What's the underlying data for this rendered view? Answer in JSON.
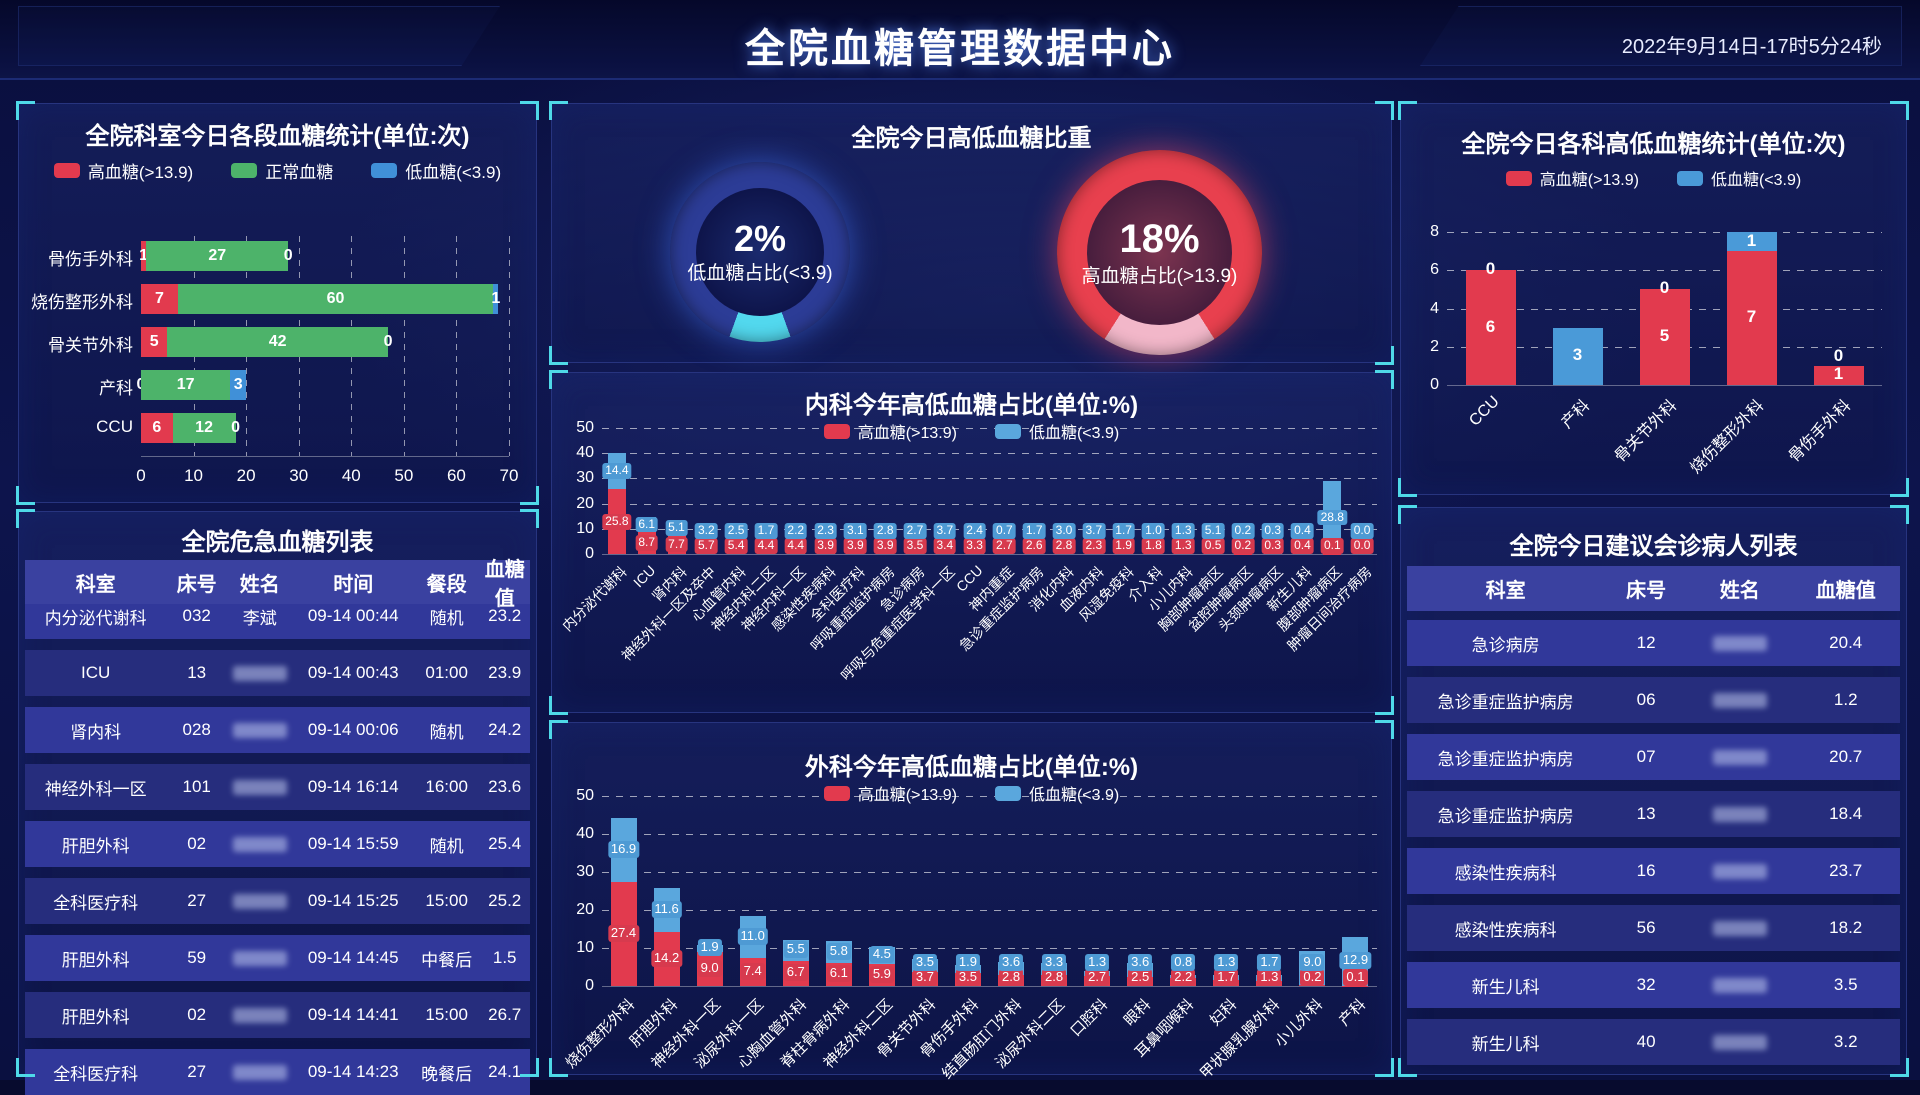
{
  "header": {
    "title": "全院血糖管理数据中心",
    "datetime": "2022年9月14日-17时5分24秒"
  },
  "colors": {
    "high": "#e23a4e",
    "normal": "#4db36a",
    "low": "#4090d8",
    "low_light": "#5aa7dd",
    "cyan_bracket": "#4fd9e8",
    "table_header_bg": "#3a41a0",
    "row_even": "#31389a",
    "row_odd": "#262d7d"
  },
  "chart_data": [
    {
      "type": "bar",
      "orientation": "horizontal",
      "stacked": true,
      "title": "全院科室今日各段血糖统计(单位:次)",
      "categories": [
        "骨伤手外科",
        "烧伤整形外科",
        "骨关节外科",
        "产科",
        "CCU"
      ],
      "series": [
        {
          "name": "高血糖(>13.9)",
          "color": "#e23a4e",
          "values": [
            1,
            7,
            5,
            0,
            6
          ]
        },
        {
          "name": "正常血糖",
          "color": "#4db36a",
          "values": [
            27,
            60,
            42,
            17,
            12
          ]
        },
        {
          "name": "低血糖(<3.9)",
          "color": "#4090d8",
          "values": [
            0,
            1,
            0,
            3,
            0
          ]
        }
      ],
      "xlim": [
        0,
        70
      ],
      "xticks": [
        0,
        10,
        20,
        30,
        40,
        50,
        60,
        70
      ],
      "grid": true
    },
    {
      "type": "pie",
      "title": "全院今日高低血糖比重",
      "donuts": [
        {
          "percent": "2%",
          "value": 2,
          "label": "低血糖占比(<3.9)",
          "ring_color": "#2c3c96",
          "arc_color": "#52d8ee",
          "glow": "rgba(70,120,255,0.55)"
        },
        {
          "percent": "18%",
          "value": 18,
          "label": "高血糖占比(>13.9)",
          "ring_color": "#e8404e",
          "arc_color": "#f2b7c9",
          "glow": "rgba(235,70,100,0.6)"
        }
      ]
    },
    {
      "type": "bar",
      "stacked": true,
      "title": "内科今年高低血糖占比(单位:%)",
      "categories": [
        "内分泌代谢科",
        "ICU",
        "肾内科",
        "神经外科一区及卒中",
        "心血管内科",
        "神经内科二区",
        "神经内科一区",
        "感染性疾病科",
        "全科医疗科",
        "呼吸重症监护病房",
        "急诊病房",
        "呼吸与危重症医学科一区",
        "CCU",
        "神内重症",
        "急诊重症监护病房",
        "消化内科",
        "血液内科",
        "风湿免疫科",
        "介入科",
        "小儿内科",
        "胸部肿瘤病区",
        "盆腔肿瘤病区",
        "头颈肿瘤病区",
        "新生儿科",
        "腹部肿瘤病区",
        "肿瘤日间治疗病房"
      ],
      "series": [
        {
          "name": "高血糖(>13.9)",
          "color": "#e23a4e",
          "values": [
            25.8,
            8.7,
            7.7,
            5.7,
            5.4,
            4.4,
            4.4,
            3.9,
            3.9,
            3.9,
            3.5,
            3.4,
            3.3,
            2.7,
            2.6,
            2.8,
            2.3,
            1.9,
            1.8,
            1.3,
            0.5,
            0.2,
            0.3,
            0.4,
            0.1,
            0.0
          ]
        },
        {
          "name": "低血糖(<3.9)",
          "color": "#5aa7dd",
          "values": [
            14.4,
            6.1,
            5.1,
            3.2,
            2.5,
            1.7,
            2.2,
            2.3,
            3.1,
            2.8,
            2.7,
            3.7,
            2.4,
            0.7,
            1.7,
            3.0,
            3.7,
            1.7,
            1.0,
            1.3,
            5.1,
            0.2,
            0.3,
            0.4,
            28.8,
            0.0
          ]
        }
      ],
      "ylim": [
        0,
        50
      ],
      "yticks": [
        0,
        10,
        20,
        30,
        40,
        50
      ],
      "grid": true
    },
    {
      "type": "bar",
      "stacked": true,
      "title": "外科今年高低血糖占比(单位:%)",
      "categories": [
        "烧伤整形外科",
        "肝胆外科",
        "神经外科一区",
        "泌尿外科一区",
        "心胸血管外科",
        "脊柱骨病外科",
        "神经外科二区",
        "骨关节外科",
        "骨伤手外科",
        "结直肠肛门外科",
        "泌尿外科二区",
        "口腔科",
        "眼科",
        "耳鼻咽喉科",
        "妇科",
        "甲状腺乳腺外科",
        "小儿外科",
        "产科"
      ],
      "series": [
        {
          "name": "高血糖(>13.9)",
          "color": "#e23a4e",
          "values": [
            27.4,
            14.2,
            9.0,
            7.4,
            6.7,
            6.1,
            5.9,
            3.7,
            3.5,
            2.8,
            2.8,
            2.7,
            2.5,
            2.2,
            1.7,
            1.3,
            0.2,
            0.1
          ]
        },
        {
          "name": "低血糖(<3.9)",
          "color": "#5aa7dd",
          "values": [
            16.9,
            11.6,
            1.9,
            11.0,
            5.5,
            5.8,
            4.5,
            3.5,
            1.9,
            3.6,
            3.3,
            1.3,
            3.6,
            0.8,
            1.3,
            1.7,
            9.0,
            12.9
          ]
        }
      ],
      "ylim": [
        0,
        50
      ],
      "yticks": [
        0,
        10,
        20,
        30,
        40,
        50
      ],
      "grid": true
    },
    {
      "type": "bar",
      "stacked": true,
      "title": "全院今日各科高低血糖统计(单位:次)",
      "categories": [
        "CCU",
        "产科",
        "骨关节外科",
        "烧伤整形外科",
        "骨伤手外科"
      ],
      "series": [
        {
          "name": "高血糖(>13.9)",
          "color": "#e23a4e",
          "values": [
            6,
            0,
            5,
            7,
            1
          ]
        },
        {
          "name": "低血糖(<3.9)",
          "color": "#4a9ad8",
          "values": [
            0,
            3,
            0,
            1,
            0
          ]
        }
      ],
      "ylim": [
        0,
        8
      ],
      "yticks": [
        0,
        2,
        4,
        6,
        8
      ],
      "grid": true
    }
  ],
  "tables": {
    "critical": {
      "title": "全院危急血糖列表",
      "columns": [
        "科室",
        "床号",
        "姓名",
        "时间",
        "餐段",
        "血糖值"
      ],
      "name_col": 2,
      "names_blurred": true,
      "rows": [
        [
          "内分泌代谢科",
          "032",
          "李斌",
          "09-14 00:44",
          "随机",
          "23.2"
        ],
        [
          "ICU",
          "13",
          "",
          "09-14 00:43",
          "01:00",
          "23.9"
        ],
        [
          "肾内科",
          "028",
          "",
          "09-14 00:06",
          "随机",
          "24.2"
        ],
        [
          "神经外科一区",
          "101",
          "",
          "09-14 16:14",
          "16:00",
          "23.6"
        ],
        [
          "肝胆外科",
          "02",
          "",
          "09-14 15:59",
          "随机",
          "25.4"
        ],
        [
          "全科医疗科",
          "27",
          "",
          "09-14 15:25",
          "15:00",
          "25.2"
        ],
        [
          "肝胆外科",
          "59",
          "",
          "09-14 14:45",
          "中餐后",
          "1.5"
        ],
        [
          "肝胆外科",
          "02",
          "",
          "09-14 14:41",
          "15:00",
          "26.7"
        ],
        [
          "全科医疗科",
          "27",
          "",
          "09-14 14:23",
          "晚餐后",
          "24.1"
        ]
      ]
    },
    "consult": {
      "title": "全院今日建议会诊病人列表",
      "columns": [
        "科室",
        "床号",
        "姓名",
        "血糖值"
      ],
      "name_col": 2,
      "names_blurred": true,
      "rows": [
        [
          "急诊病房",
          "12",
          "",
          "20.4"
        ],
        [
          "急诊重症监护病房",
          "06",
          "",
          "1.2"
        ],
        [
          "急诊重症监护病房",
          "07",
          "",
          "20.7"
        ],
        [
          "急诊重症监护病房",
          "13",
          "",
          "18.4"
        ],
        [
          "感染性疾病科",
          "16",
          "",
          "23.7"
        ],
        [
          "感染性疾病科",
          "56",
          "",
          "18.2"
        ],
        [
          "新生儿科",
          "32",
          "",
          "3.5"
        ],
        [
          "新生儿科",
          "40",
          "",
          "3.2"
        ]
      ]
    }
  }
}
